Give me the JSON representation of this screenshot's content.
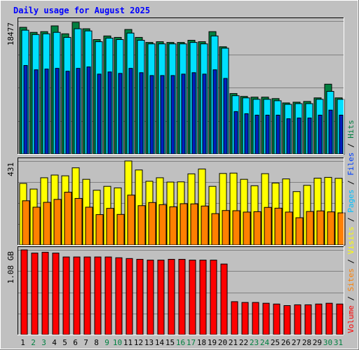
{
  "chart_data": {
    "type": "bar",
    "title": "Daily usage for August 2025",
    "categories": [
      "1",
      "2",
      "3",
      "4",
      "5",
      "6",
      "7",
      "8",
      "9",
      "10",
      "11",
      "12",
      "13",
      "14",
      "15",
      "16",
      "17",
      "18",
      "19",
      "20",
      "21",
      "22",
      "23",
      "24",
      "25",
      "26",
      "27",
      "28",
      "29",
      "30",
      "31"
    ],
    "weekend_days": [
      "2",
      "3",
      "9",
      "10",
      "16",
      "17",
      "23",
      "24",
      "30",
      "31"
    ],
    "panels": [
      {
        "id": "hits-files",
        "max_label": "18477",
        "max_value": 18477,
        "series": [
          {
            "name": "Hits",
            "color": "#008040",
            "values": [
              17600,
              16900,
              17000,
              17800,
              16700,
              18300,
              17400,
              15900,
              16400,
              16200,
              17300,
              16200,
              15500,
              15600,
              15500,
              15500,
              15800,
              15600,
              17000,
              14900,
              8400,
              8000,
              7900,
              7900,
              7700,
              7100,
              7200,
              7300,
              7800,
              9700,
              7800
            ]
          },
          {
            "name": "Files",
            "color": "#00e0ff",
            "values": [
              17200,
              16600,
              16700,
              16900,
              16200,
              17400,
              17100,
              15600,
              16100,
              15900,
              16800,
              15800,
              15300,
              15300,
              15300,
              15300,
              15500,
              15300,
              16400,
              14700,
              8100,
              7800,
              7600,
              7600,
              7400,
              6900,
              7000,
              7000,
              7600,
              8700,
              7600
            ]
          },
          {
            "name": "Pages",
            "color": "#0020c0",
            "values": [
              12300,
              11700,
              11800,
              11900,
              11500,
              11900,
              12100,
              11100,
              11400,
              11200,
              11900,
              11300,
              10900,
              10900,
              10900,
              11100,
              11300,
              11100,
              11700,
              10500,
              5900,
              5600,
              5400,
              5400,
              5400,
              4900,
              5000,
              5000,
              5400,
              6100,
              5400
            ]
          }
        ]
      },
      {
        "id": "visits-sites",
        "max_label": "431",
        "max_value": 431,
        "series": [
          {
            "name": "Visits",
            "color": "#ffff00",
            "values": [
              316,
              287,
              345,
              359,
              355,
              396,
              337,
              281,
              301,
              293,
              431,
              385,
              327,
              345,
              323,
              324,
              365,
              390,
              301,
              367,
              369,
              337,
              304,
              366,
              318,
              339,
              274,
              306,
              343,
              347,
              342
            ]
          },
          {
            "name": "Sites",
            "color": "#ff8000",
            "values": [
              227,
              194,
              219,
              234,
              271,
              239,
              194,
              156,
              188,
              157,
              256,
              202,
              218,
              207,
              196,
              212,
              211,
              200,
              161,
              177,
              176,
              169,
              171,
              193,
              189,
              169,
              140,
              172,
              175,
              170,
              165
            ]
          }
        ]
      },
      {
        "id": "volume",
        "max_label": "1.08 GB",
        "max_value": 1.08,
        "series": [
          {
            "name": "Volume",
            "color": "#ff0000",
            "values": [
              1.08,
              1.04,
              1.05,
              1.04,
              0.99,
              0.99,
              0.99,
              0.99,
              0.99,
              0.98,
              0.97,
              0.96,
              0.95,
              0.95,
              0.96,
              0.96,
              0.95,
              0.95,
              0.95,
              0.9,
              0.42,
              0.41,
              0.41,
              0.4,
              0.39,
              0.37,
              0.38,
              0.38,
              0.39,
              0.4,
              0.39
            ]
          }
        ]
      }
    ],
    "legend_right": [
      {
        "label": "Hits",
        "color": "#008040"
      },
      {
        "label": "Files",
        "color": "#0040ff"
      },
      {
        "label": "Pages",
        "color": "#00c0ff"
      },
      {
        "label": "Visits",
        "color": "#ffff00"
      },
      {
        "label": "Sites",
        "color": "#ff8000"
      },
      {
        "label": "Volume",
        "color": "#ff0000"
      }
    ],
    "legend_separator": "/",
    "grid": true
  }
}
